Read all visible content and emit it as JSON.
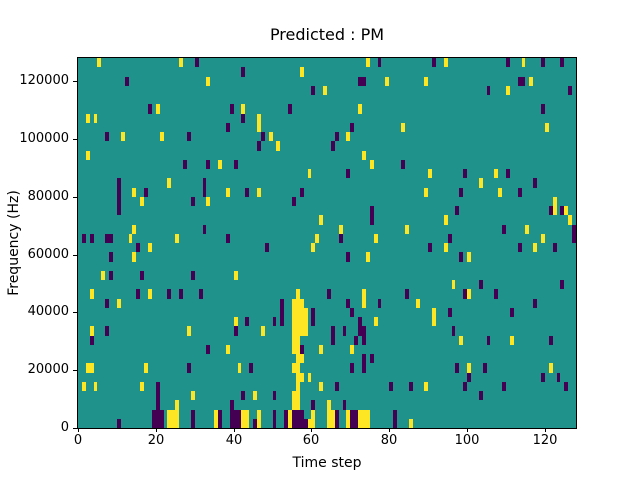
{
  "window": {
    "background": "#ffffff"
  },
  "chart_data": {
    "type": "heatmap",
    "title": "Predicted : PM",
    "xlabel": "Time step",
    "ylabel": "Frequency (Hz)",
    "x_range": [
      0,
      128
    ],
    "y_range": [
      0,
      128000
    ],
    "grid": [
      128,
      40
    ],
    "x_ticks": [
      0,
      20,
      40,
      60,
      80,
      100,
      120
    ],
    "y_ticks": [
      0,
      20000,
      40000,
      60000,
      80000,
      100000,
      120000
    ],
    "legend": "none",
    "grid_lines": "off",
    "colors": {
      "background": "#20928c",
      "yellow": "#fde725",
      "dark": "#440154",
      "text": "#000000"
    },
    "cells_note": "Each cell = [time_step, freq_bin(0=bottom,39=top), color(1=yellow,0=dark)]; all other cells are teal background",
    "cells": [
      [
        5,
        39,
        1
      ],
      [
        26,
        39,
        1
      ],
      [
        30,
        39,
        0
      ],
      [
        12,
        37,
        0
      ],
      [
        18,
        34,
        0
      ],
      [
        20,
        34,
        1
      ],
      [
        2,
        33,
        1
      ],
      [
        4,
        33,
        1
      ],
      [
        7,
        31,
        0
      ],
      [
        11,
        31,
        1
      ],
      [
        21,
        31,
        1
      ],
      [
        28,
        31,
        0
      ],
      [
        2,
        29,
        1
      ],
      [
        27,
        28,
        0
      ],
      [
        23,
        26,
        1
      ],
      [
        10,
        26,
        0
      ],
      [
        42,
        38,
        0
      ],
      [
        57,
        38,
        1
      ],
      [
        33,
        37,
        1
      ],
      [
        60,
        36,
        0
      ],
      [
        63,
        36,
        1
      ],
      [
        39,
        34,
        0
      ],
      [
        42,
        34,
        1
      ],
      [
        54,
        34,
        0
      ],
      [
        42,
        33,
        0
      ],
      [
        46,
        33,
        1
      ],
      [
        38,
        32,
        0
      ],
      [
        46,
        32,
        1
      ],
      [
        47,
        31,
        0
      ],
      [
        49,
        31,
        1
      ],
      [
        46,
        30,
        0
      ],
      [
        51,
        30,
        1
      ],
      [
        33,
        28,
        0
      ],
      [
        36,
        28,
        1
      ],
      [
        40,
        28,
        0
      ],
      [
        59,
        27,
        1
      ],
      [
        32,
        26,
        0
      ],
      [
        32,
        25,
        0
      ],
      [
        74,
        39,
        1
      ],
      [
        77,
        39,
        0
      ],
      [
        91,
        39,
        0
      ],
      [
        94,
        39,
        1
      ],
      [
        72,
        37,
        0
      ],
      [
        73,
        37,
        0
      ],
      [
        79,
        37,
        1
      ],
      [
        89,
        37,
        1
      ],
      [
        72,
        34,
        1
      ],
      [
        70,
        32,
        0
      ],
      [
        83,
        32,
        1
      ],
      [
        66,
        31,
        0
      ],
      [
        69,
        31,
        1
      ],
      [
        65,
        30,
        0
      ],
      [
        73,
        29,
        1
      ],
      [
        75,
        28,
        1
      ],
      [
        83,
        28,
        0
      ],
      [
        69,
        27,
        0
      ],
      [
        90,
        27,
        1
      ],
      [
        110,
        39,
        0
      ],
      [
        114,
        39,
        1
      ],
      [
        119,
        39,
        0
      ],
      [
        124,
        39,
        0
      ],
      [
        113,
        37,
        0
      ],
      [
        114,
        37,
        0
      ],
      [
        116,
        37,
        1
      ],
      [
        105,
        36,
        0
      ],
      [
        110,
        36,
        1
      ],
      [
        126,
        36,
        0
      ],
      [
        119,
        34,
        0
      ],
      [
        120,
        32,
        1
      ],
      [
        99,
        27,
        0
      ],
      [
        107,
        27,
        1
      ],
      [
        110,
        27,
        0
      ],
      [
        103,
        26,
        1
      ],
      [
        117,
        26,
        0
      ],
      [
        10,
        25,
        0
      ],
      [
        10,
        24,
        0
      ],
      [
        10,
        23,
        0
      ],
      [
        14,
        25,
        1
      ],
      [
        17,
        25,
        0
      ],
      [
        16,
        24,
        1
      ],
      [
        29,
        24,
        0
      ],
      [
        14,
        21,
        1
      ],
      [
        13,
        20,
        1
      ],
      [
        1,
        20,
        0
      ],
      [
        3,
        20,
        0
      ],
      [
        7,
        20,
        0
      ],
      [
        8,
        20,
        0
      ],
      [
        25,
        20,
        1
      ],
      [
        18,
        19,
        1
      ],
      [
        15,
        19,
        0
      ],
      [
        8,
        18,
        0
      ],
      [
        14,
        18,
        1
      ],
      [
        6,
        16,
        1
      ],
      [
        8,
        16,
        0
      ],
      [
        16,
        16,
        0
      ],
      [
        29,
        16,
        0
      ],
      [
        3,
        14,
        1
      ],
      [
        15,
        14,
        0
      ],
      [
        18,
        14,
        1
      ],
      [
        23,
        14,
        0
      ],
      [
        26,
        14,
        0
      ],
      [
        31,
        14,
        0
      ],
      [
        38,
        25,
        1
      ],
      [
        43,
        25,
        0
      ],
      [
        46,
        25,
        1
      ],
      [
        57,
        25,
        0
      ],
      [
        33,
        24,
        1
      ],
      [
        55,
        24,
        0
      ],
      [
        62,
        22,
        1
      ],
      [
        32,
        21,
        0
      ],
      [
        38,
        20,
        0
      ],
      [
        61,
        20,
        1
      ],
      [
        60,
        19,
        1
      ],
      [
        48,
        19,
        0
      ],
      [
        40,
        16,
        1
      ],
      [
        56,
        14,
        1
      ],
      [
        89,
        25,
        1
      ],
      [
        75,
        23,
        0
      ],
      [
        75,
        22,
        0
      ],
      [
        94,
        22,
        1
      ],
      [
        67,
        21,
        1
      ],
      [
        84,
        21,
        1
      ],
      [
        67,
        20,
        0
      ],
      [
        76,
        20,
        1
      ],
      [
        95,
        20,
        0
      ],
      [
        90,
        19,
        0
      ],
      [
        94,
        19,
        1
      ],
      [
        69,
        18,
        0
      ],
      [
        74,
        18,
        1
      ],
      [
        64,
        14,
        0
      ],
      [
        73,
        14,
        1
      ],
      [
        84,
        14,
        0
      ],
      [
        98,
        25,
        0
      ],
      [
        108,
        25,
        1
      ],
      [
        113,
        25,
        0
      ],
      [
        122,
        24,
        1
      ],
      [
        97,
        23,
        0
      ],
      [
        121,
        23,
        0
      ],
      [
        122,
        23,
        1
      ],
      [
        124,
        23,
        0
      ],
      [
        125,
        23,
        1
      ],
      [
        126,
        22,
        1
      ],
      [
        109,
        21,
        0
      ],
      [
        115,
        21,
        1
      ],
      [
        127,
        21,
        0
      ],
      [
        127,
        20,
        0
      ],
      [
        119,
        20,
        1
      ],
      [
        113,
        19,
        0
      ],
      [
        117,
        19,
        1
      ],
      [
        122,
        19,
        0
      ],
      [
        98,
        18,
        0
      ],
      [
        100,
        18,
        1
      ],
      [
        96,
        15,
        1
      ],
      [
        103,
        15,
        0
      ],
      [
        124,
        15,
        0
      ],
      [
        99,
        14,
        0
      ],
      [
        100,
        14,
        1
      ],
      [
        107,
        14,
        0
      ],
      [
        7,
        13,
        0
      ],
      [
        10,
        13,
        1
      ],
      [
        3,
        10,
        1
      ],
      [
        7,
        10,
        0
      ],
      [
        28,
        10,
        1
      ],
      [
        3,
        9,
        0
      ],
      [
        2,
        6,
        1
      ],
      [
        3,
        6,
        1
      ],
      [
        17,
        6,
        1
      ],
      [
        28,
        6,
        0
      ],
      [
        1,
        4,
        1
      ],
      [
        4,
        4,
        1
      ],
      [
        16,
        4,
        1
      ],
      [
        20,
        4,
        0
      ],
      [
        20,
        3,
        0
      ],
      [
        29,
        3,
        1
      ],
      [
        20,
        2,
        0
      ],
      [
        25,
        2,
        1
      ],
      [
        19,
        1,
        0
      ],
      [
        20,
        1,
        0
      ],
      [
        21,
        1,
        0
      ],
      [
        19,
        0,
        0
      ],
      [
        20,
        0,
        0
      ],
      [
        21,
        0,
        0
      ],
      [
        23,
        1,
        1
      ],
      [
        24,
        1,
        1
      ],
      [
        25,
        1,
        1
      ],
      [
        23,
        0,
        1
      ],
      [
        24,
        0,
        1
      ],
      [
        25,
        0,
        1
      ],
      [
        29,
        1,
        0
      ],
      [
        29,
        0,
        0
      ],
      [
        10,
        0,
        0
      ],
      [
        40,
        11,
        1
      ],
      [
        43,
        11,
        0
      ],
      [
        40,
        10,
        0
      ],
      [
        47,
        10,
        1
      ],
      [
        50,
        11,
        0
      ],
      [
        33,
        8,
        0
      ],
      [
        38,
        8,
        1
      ],
      [
        62,
        8,
        1
      ],
      [
        41,
        6,
        1
      ],
      [
        44,
        6,
        0
      ],
      [
        59,
        5,
        1
      ],
      [
        62,
        4,
        1
      ],
      [
        42,
        3,
        0
      ],
      [
        45,
        3,
        1
      ],
      [
        50,
        3,
        0
      ],
      [
        39,
        2,
        0
      ],
      [
        60,
        2,
        0
      ],
      [
        52,
        13,
        0
      ],
      [
        52,
        12,
        0
      ],
      [
        52,
        11,
        0
      ],
      [
        55,
        13,
        1
      ],
      [
        56,
        13,
        1
      ],
      [
        57,
        13,
        1
      ],
      [
        55,
        12,
        1
      ],
      [
        56,
        12,
        1
      ],
      [
        57,
        12,
        1
      ],
      [
        58,
        12,
        1
      ],
      [
        60,
        12,
        0
      ],
      [
        55,
        11,
        1
      ],
      [
        56,
        11,
        1
      ],
      [
        57,
        11,
        1
      ],
      [
        58,
        11,
        1
      ],
      [
        60,
        11,
        0
      ],
      [
        55,
        10,
        1
      ],
      [
        56,
        10,
        1
      ],
      [
        57,
        10,
        1
      ],
      [
        58,
        10,
        1
      ],
      [
        55,
        9,
        1
      ],
      [
        56,
        9,
        1
      ],
      [
        55,
        8,
        1
      ],
      [
        56,
        8,
        1
      ],
      [
        57,
        8,
        0
      ],
      [
        56,
        7,
        1
      ],
      [
        57,
        7,
        1
      ],
      [
        55,
        6,
        1
      ],
      [
        56,
        6,
        1
      ],
      [
        56,
        5,
        1
      ],
      [
        57,
        5,
        1
      ],
      [
        56,
        4,
        1
      ],
      [
        55,
        3,
        1
      ],
      [
        56,
        3,
        1
      ],
      [
        55,
        2,
        1
      ],
      [
        56,
        2,
        1
      ],
      [
        35,
        1,
        1
      ],
      [
        35,
        0,
        1
      ],
      [
        36,
        1,
        0
      ],
      [
        36,
        0,
        0
      ],
      [
        39,
        1,
        0
      ],
      [
        39,
        0,
        0
      ],
      [
        40,
        1,
        0
      ],
      [
        40,
        0,
        0
      ],
      [
        41,
        1,
        0
      ],
      [
        41,
        0,
        0
      ],
      [
        42,
        1,
        1
      ],
      [
        42,
        0,
        1
      ],
      [
        43,
        1,
        1
      ],
      [
        43,
        0,
        1
      ],
      [
        45,
        0,
        0
      ],
      [
        46,
        1,
        1
      ],
      [
        46,
        0,
        1
      ],
      [
        50,
        1,
        0
      ],
      [
        50,
        0,
        0
      ],
      [
        53,
        1,
        0
      ],
      [
        53,
        0,
        0
      ],
      [
        54,
        1,
        1
      ],
      [
        54,
        0,
        1
      ],
      [
        55,
        1,
        0
      ],
      [
        55,
        0,
        0
      ],
      [
        56,
        1,
        0
      ],
      [
        56,
        0,
        0
      ],
      [
        57,
        1,
        0
      ],
      [
        57,
        0,
        0
      ],
      [
        58,
        0,
        0
      ],
      [
        59,
        0,
        1
      ],
      [
        60,
        1,
        1
      ],
      [
        60,
        0,
        1
      ],
      [
        69,
        13,
        0
      ],
      [
        73,
        13,
        1
      ],
      [
        77,
        13,
        0
      ],
      [
        87,
        13,
        1
      ],
      [
        70,
        12,
        0
      ],
      [
        91,
        12,
        1
      ],
      [
        95,
        12,
        0
      ],
      [
        72,
        11,
        0
      ],
      [
        76,
        11,
        1
      ],
      [
        91,
        11,
        1
      ],
      [
        65,
        10,
        0
      ],
      [
        68,
        10,
        0
      ],
      [
        72,
        10,
        0
      ],
      [
        73,
        10,
        0
      ],
      [
        65,
        9,
        0
      ],
      [
        71,
        9,
        0
      ],
      [
        73,
        9,
        0
      ],
      [
        70,
        8,
        1
      ],
      [
        73,
        7,
        0
      ],
      [
        75,
        7,
        0
      ],
      [
        70,
        6,
        0
      ],
      [
        73,
        6,
        0
      ],
      [
        66,
        4,
        0
      ],
      [
        80,
        4,
        0
      ],
      [
        85,
        4,
        0
      ],
      [
        89,
        4,
        1
      ],
      [
        64,
        2,
        1
      ],
      [
        68,
        2,
        0
      ],
      [
        64,
        1,
        1
      ],
      [
        64,
        0,
        1
      ],
      [
        65,
        1,
        1
      ],
      [
        65,
        0,
        1
      ],
      [
        66,
        1,
        0
      ],
      [
        66,
        0,
        0
      ],
      [
        69,
        1,
        1
      ],
      [
        69,
        0,
        1
      ],
      [
        70,
        1,
        0
      ],
      [
        70,
        0,
        0
      ],
      [
        71,
        1,
        0
      ],
      [
        71,
        0,
        0
      ],
      [
        72,
        1,
        1
      ],
      [
        72,
        0,
        1
      ],
      [
        73,
        1,
        1
      ],
      [
        73,
        0,
        1
      ],
      [
        74,
        1,
        1
      ],
      [
        74,
        0,
        1
      ],
      [
        81,
        1,
        0
      ],
      [
        81,
        0,
        0
      ],
      [
        85,
        0,
        1
      ],
      [
        111,
        12,
        0
      ],
      [
        96,
        10,
        0
      ],
      [
        98,
        9,
        1
      ],
      [
        105,
        9,
        0
      ],
      [
        111,
        9,
        1
      ],
      [
        121,
        9,
        0
      ],
      [
        97,
        6,
        0
      ],
      [
        100,
        6,
        1
      ],
      [
        104,
        6,
        0
      ],
      [
        121,
        6,
        1
      ],
      [
        100,
        5,
        0
      ],
      [
        119,
        5,
        0
      ],
      [
        123,
        5,
        0
      ],
      [
        99,
        4,
        0
      ],
      [
        109,
        4,
        0
      ],
      [
        125,
        4,
        0
      ],
      [
        103,
        3,
        0
      ],
      [
        117,
        13,
        0
      ]
    ]
  }
}
